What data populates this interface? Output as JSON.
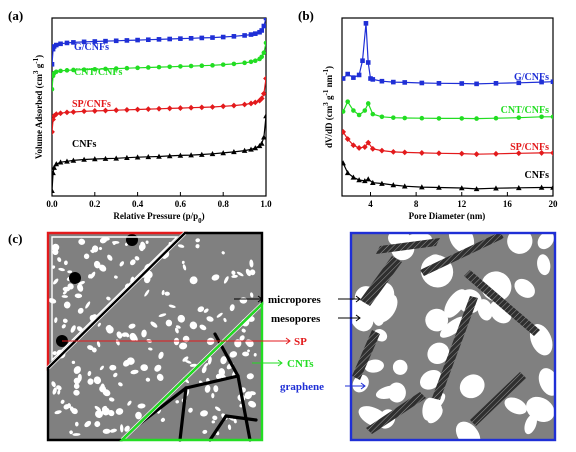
{
  "panels": {
    "a": "(a)",
    "b": "(b)",
    "c": "(c)"
  },
  "chart_data": [
    {
      "type": "line",
      "panel": "(a)",
      "xlabel": "Relative Pressure (p/p",
      "xlabel_sub": "0",
      "xlabel_close": ")",
      "ylabel": "Volume Adsorbed (cm",
      "ylabel_sup1": "3",
      "ylabel_mid": " g",
      "ylabel_sup2": "-1",
      "ylabel_close": ")",
      "xlim": [
        0.0,
        1.0
      ],
      "ylim": [
        0,
        10
      ],
      "x_ticks": [
        "0.0",
        "0.2",
        "0.4",
        "0.6",
        "0.8",
        "1.0"
      ],
      "y_ticks_shown": false,
      "series": [
        {
          "name": "CNFs",
          "color": "#000000",
          "marker": "triangle",
          "offset": 0.0,
          "x": [
            0.0,
            0.005,
            0.01,
            0.02,
            0.04,
            0.07,
            0.1,
            0.15,
            0.2,
            0.25,
            0.3,
            0.35,
            0.4,
            0.45,
            0.5,
            0.55,
            0.6,
            0.65,
            0.7,
            0.75,
            0.8,
            0.85,
            0.9,
            0.93,
            0.95,
            0.97,
            0.98,
            0.99,
            1.0
          ],
          "y": [
            0.3,
            1.3,
            1.6,
            1.8,
            1.9,
            1.95,
            2.0,
            2.05,
            2.08,
            2.1,
            2.12,
            2.15,
            2.18,
            2.2,
            2.22,
            2.25,
            2.28,
            2.3,
            2.33,
            2.37,
            2.42,
            2.48,
            2.55,
            2.62,
            2.7,
            2.82,
            2.95,
            3.3,
            4.5
          ]
        },
        {
          "name": "SP/CNFs",
          "color": "#e31a1c",
          "marker": "diamond",
          "offset": 0.0,
          "x": [
            0.0,
            0.005,
            0.01,
            0.02,
            0.04,
            0.07,
            0.1,
            0.15,
            0.2,
            0.25,
            0.3,
            0.35,
            0.4,
            0.45,
            0.5,
            0.55,
            0.6,
            0.65,
            0.7,
            0.75,
            0.8,
            0.85,
            0.9,
            0.93,
            0.95,
            0.97,
            0.98,
            0.99,
            1.0
          ],
          "y": [
            3.6,
            4.3,
            4.5,
            4.6,
            4.65,
            4.7,
            4.72,
            4.76,
            4.78,
            4.8,
            4.82,
            4.84,
            4.86,
            4.88,
            4.9,
            4.92,
            4.94,
            4.96,
            4.98,
            5.0,
            5.04,
            5.08,
            5.14,
            5.2,
            5.26,
            5.36,
            5.48,
            5.75,
            6.6
          ]
        },
        {
          "name": "CNT/CNFs",
          "color": "#22dd22",
          "marker": "circle",
          "offset": 0.0,
          "x": [
            0.0,
            0.005,
            0.01,
            0.02,
            0.04,
            0.07,
            0.1,
            0.15,
            0.2,
            0.25,
            0.3,
            0.35,
            0.4,
            0.45,
            0.5,
            0.55,
            0.6,
            0.65,
            0.7,
            0.75,
            0.8,
            0.85,
            0.9,
            0.93,
            0.95,
            0.97,
            0.98,
            0.99,
            1.0
          ],
          "y": [
            6.0,
            6.75,
            6.9,
            6.98,
            7.03,
            7.06,
            7.08,
            7.1,
            7.12,
            7.14,
            7.16,
            7.18,
            7.2,
            7.22,
            7.24,
            7.26,
            7.28,
            7.3,
            7.32,
            7.34,
            7.38,
            7.42,
            7.48,
            7.54,
            7.6,
            7.7,
            7.82,
            8.05,
            8.6
          ]
        },
        {
          "name": "G/CNFs",
          "color": "#1f2fd6",
          "marker": "square",
          "offset": 0.0,
          "x": [
            0.0,
            0.005,
            0.01,
            0.02,
            0.04,
            0.07,
            0.1,
            0.15,
            0.2,
            0.25,
            0.3,
            0.35,
            0.4,
            0.45,
            0.5,
            0.55,
            0.6,
            0.65,
            0.7,
            0.75,
            0.8,
            0.85,
            0.9,
            0.93,
            0.95,
            0.97,
            0.98,
            0.99,
            1.0
          ],
          "y": [
            7.4,
            8.25,
            8.4,
            8.48,
            8.55,
            8.6,
            8.63,
            8.66,
            8.68,
            8.7,
            8.72,
            8.74,
            8.76,
            8.78,
            8.8,
            8.82,
            8.84,
            8.86,
            8.88,
            8.9,
            8.93,
            8.97,
            9.02,
            9.07,
            9.12,
            9.2,
            9.3,
            9.55,
            10.0
          ]
        }
      ]
    },
    {
      "type": "line",
      "panel": "(b)",
      "xlabel": "Pore Diameter (nm)",
      "ylabel": "dV/dD (cm",
      "ylabel_sup1": "3",
      "ylabel_mid": " g",
      "ylabel_sup2": "-1",
      "ylabel_mid2": " nm",
      "ylabel_sup3": "-1",
      "ylabel_close": ")",
      "xlim": [
        1.5,
        20
      ],
      "ylim": [
        0,
        10
      ],
      "x_ticks": [
        "4",
        "8",
        "12",
        "16",
        "20"
      ],
      "y_ticks_shown": false,
      "series": [
        {
          "name": "CNFs",
          "color": "#000000",
          "marker": "triangle",
          "x": [
            1.6,
            2.0,
            2.5,
            3.0,
            3.5,
            3.8,
            4.2,
            5.0,
            6.0,
            7.0,
            8.5,
            10.0,
            12.0,
            13.3,
            15.0,
            17.0,
            19.0,
            20.0
          ],
          "y": [
            1.85,
            1.3,
            1.05,
            0.9,
            0.85,
            0.95,
            0.75,
            0.7,
            0.62,
            0.55,
            0.5,
            0.48,
            0.45,
            0.4,
            0.44,
            0.46,
            0.48,
            0.48
          ]
        },
        {
          "name": "SP/CNFs",
          "color": "#e31a1c",
          "marker": "diamond",
          "x": [
            1.6,
            2.0,
            2.5,
            3.0,
            3.5,
            3.8,
            4.2,
            5.0,
            6.0,
            7.0,
            8.5,
            10.0,
            12.0,
            13.3,
            15.0,
            17.0,
            19.0,
            20.0
          ],
          "y": [
            3.6,
            3.2,
            2.85,
            2.7,
            2.75,
            3.0,
            2.65,
            2.55,
            2.48,
            2.45,
            2.42,
            2.4,
            2.38,
            2.35,
            2.37,
            2.4,
            2.42,
            2.42
          ]
        },
        {
          "name": "CNT/CNFs",
          "color": "#22dd22",
          "marker": "circle",
          "x": [
            1.6,
            2.0,
            2.5,
            3.0,
            3.5,
            3.8,
            4.2,
            5.0,
            6.0,
            7.0,
            8.5,
            10.0,
            12.0,
            13.3,
            15.0,
            17.0,
            19.0,
            20.0
          ],
          "y": [
            4.75,
            5.3,
            4.8,
            4.55,
            4.8,
            5.2,
            4.6,
            4.45,
            4.4,
            4.38,
            4.37,
            4.36,
            4.36,
            4.35,
            4.37,
            4.4,
            4.45,
            4.45
          ]
        },
        {
          "name": "G/CNFs",
          "color": "#1f2fd6",
          "marker": "square",
          "x": [
            1.6,
            2.0,
            2.5,
            3.0,
            3.3,
            3.6,
            3.8,
            4.0,
            4.2,
            5.0,
            6.0,
            7.0,
            8.5,
            10.0,
            12.0,
            13.3,
            15.0,
            17.0,
            19.0,
            20.0
          ],
          "y": [
            6.6,
            6.85,
            6.65,
            6.8,
            7.6,
            9.7,
            7.5,
            6.6,
            6.55,
            6.45,
            6.4,
            6.38,
            6.35,
            6.33,
            6.32,
            6.3,
            6.33,
            6.36,
            6.4,
            6.42
          ]
        }
      ]
    }
  ],
  "schematic": {
    "labels": [
      {
        "id": "micropores",
        "text": "micropores",
        "color": "#000000"
      },
      {
        "id": "mesopores",
        "text": "mesopores",
        "color": "#000000"
      },
      {
        "id": "sp",
        "text": "SP",
        "color": "#e31a1c"
      },
      {
        "id": "cnts",
        "text": "CNTs",
        "color": "#22dd22"
      },
      {
        "id": "graphene",
        "text": "graphene",
        "color": "#1f2fd6"
      }
    ],
    "colors": {
      "matrix": "#808080",
      "pore": "#ffffff",
      "sp_particle": "#000000",
      "frame_left": "#000000",
      "frame_sp": "#e31a1c",
      "frame_cnt": "#22dd22",
      "frame_graphene": "#1f2fd6",
      "graphene_sheet": "#3a3a3a"
    }
  }
}
